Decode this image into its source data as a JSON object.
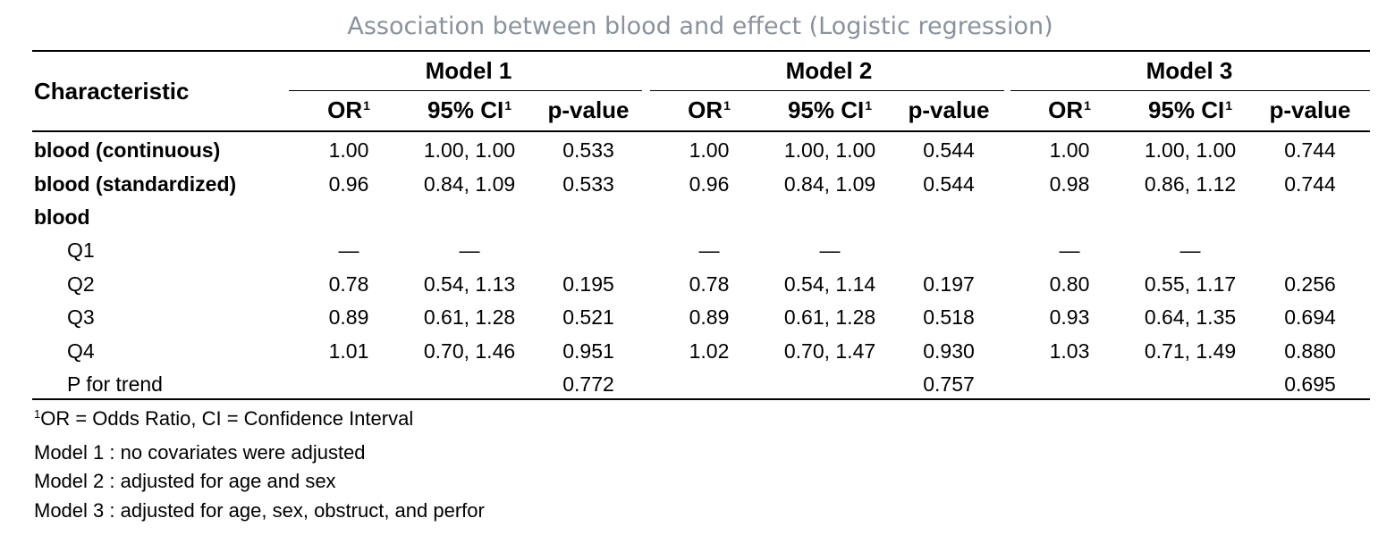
{
  "title": "Association between blood and effect (Logistic regression)",
  "header": {
    "characteristic": "Characteristic",
    "models": [
      "Model 1",
      "Model 2",
      "Model 3"
    ],
    "columns": [
      "OR",
      "95% CI",
      "p-value"
    ],
    "footnote_marker": "1"
  },
  "rows": [
    {
      "label": "blood (continuous)",
      "bold": true,
      "indent": false,
      "cells": [
        "1.00",
        "1.00, 1.00",
        "0.533",
        "1.00",
        "1.00, 1.00",
        "0.544",
        "1.00",
        "1.00, 1.00",
        "0.744"
      ]
    },
    {
      "label": "blood (standardized)",
      "bold": true,
      "indent": false,
      "cells": [
        "0.96",
        "0.84, 1.09",
        "0.533",
        "0.96",
        "0.84, 1.09",
        "0.544",
        "0.98",
        "0.86, 1.12",
        "0.744"
      ]
    },
    {
      "label": "blood",
      "bold": true,
      "indent": false,
      "cells": [
        "",
        "",
        "",
        "",
        "",
        "",
        "",
        "",
        ""
      ]
    },
    {
      "label": "Q1",
      "bold": false,
      "indent": true,
      "cells": [
        "—",
        "—",
        "",
        "—",
        "—",
        "",
        "—",
        "—",
        ""
      ]
    },
    {
      "label": "Q2",
      "bold": false,
      "indent": true,
      "cells": [
        "0.78",
        "0.54, 1.13",
        "0.195",
        "0.78",
        "0.54, 1.14",
        "0.197",
        "0.80",
        "0.55, 1.17",
        "0.256"
      ]
    },
    {
      "label": "Q3",
      "bold": false,
      "indent": true,
      "cells": [
        "0.89",
        "0.61, 1.28",
        "0.521",
        "0.89",
        "0.61, 1.28",
        "0.518",
        "0.93",
        "0.64, 1.35",
        "0.694"
      ]
    },
    {
      "label": "Q4",
      "bold": false,
      "indent": true,
      "cells": [
        "1.01",
        "0.70, 1.46",
        "0.951",
        "1.02",
        "0.70, 1.47",
        "0.930",
        "1.03",
        "0.71, 1.49",
        "0.880"
      ]
    },
    {
      "label": "P for trend",
      "bold": false,
      "indent": true,
      "cells": [
        "",
        "",
        "0.772",
        "",
        "",
        "0.757",
        "",
        "",
        "0.695"
      ]
    }
  ],
  "footnotes": {
    "abbrev_marker": "1",
    "abbrev": "OR = Odds Ratio, CI = Confidence Interval",
    "models": [
      "Model 1 : no covariates were adjusted",
      "Model 2 : adjusted for age and sex",
      "Model 3 : adjusted for age, sex, obstruct, and perfor"
    ]
  }
}
